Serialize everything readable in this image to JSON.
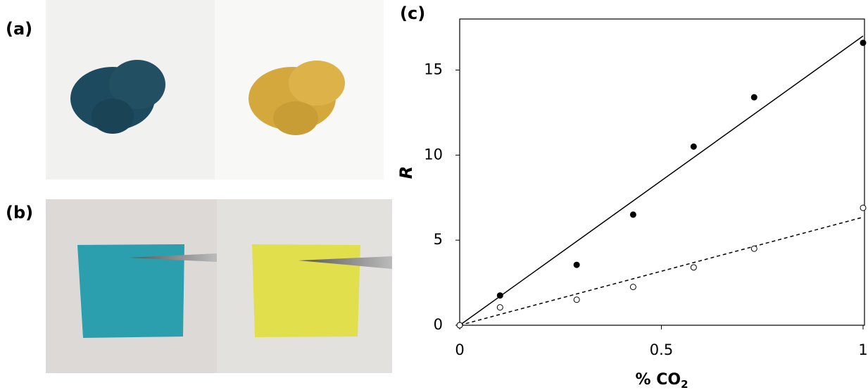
{
  "panel_labels": [
    "(a)",
    "(b)",
    "(c)"
  ],
  "chart_data": {
    "type": "scatter",
    "ylabel": "R",
    "xlabel": "% CO",
    "xlabel_sub": "2",
    "xlim": [
      0,
      1
    ],
    "ylim": [
      0,
      18
    ],
    "xticks": [
      0,
      0.5,
      1
    ],
    "yticks": [
      0,
      5,
      10,
      15
    ],
    "series": [
      {
        "marker": "filled",
        "color": "#000000",
        "x": [
          0,
          0.1,
          0.29,
          0.43,
          0.58,
          0.73,
          1.0
        ],
        "values": [
          0,
          1.75,
          3.55,
          6.5,
          10.5,
          13.4,
          16.6
        ]
      },
      {
        "marker": "open",
        "color": "#000000",
        "x": [
          0,
          0.1,
          0.29,
          0.43,
          0.58,
          0.73,
          1.0
        ],
        "values": [
          0,
          1.05,
          1.5,
          2.25,
          3.4,
          4.5,
          6.9
        ]
      }
    ],
    "fit_lines": [
      {
        "dash": false,
        "x": [
          0,
          1
        ],
        "values": [
          0,
          17.0
        ]
      },
      {
        "dash": true,
        "x": [
          0,
          1
        ],
        "values": [
          0,
          6.35
        ]
      }
    ]
  }
}
